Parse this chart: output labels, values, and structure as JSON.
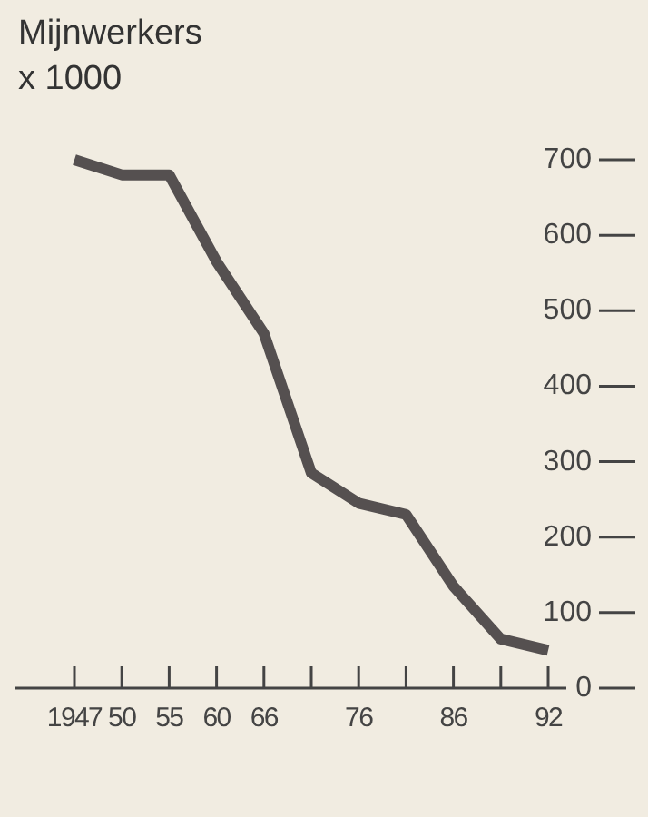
{
  "chart_data": {
    "type": "line",
    "title": "Mijnwerkers\nx 1000",
    "categories": [
      "1947",
      "50",
      "55",
      "60",
      "66",
      null,
      "76",
      null,
      "86",
      null,
      "92"
    ],
    "series": [
      {
        "color": "#555050",
        "values": [
          700,
          680,
          680,
          565,
          470,
          285,
          245,
          230,
          135,
          65,
          50
        ]
      }
    ],
    "ylim": [
      0,
      700
    ],
    "yticks": [
      0,
      100,
      200,
      300,
      400,
      500,
      600,
      700
    ],
    "marker": "none",
    "line_style": "solid"
  }
}
